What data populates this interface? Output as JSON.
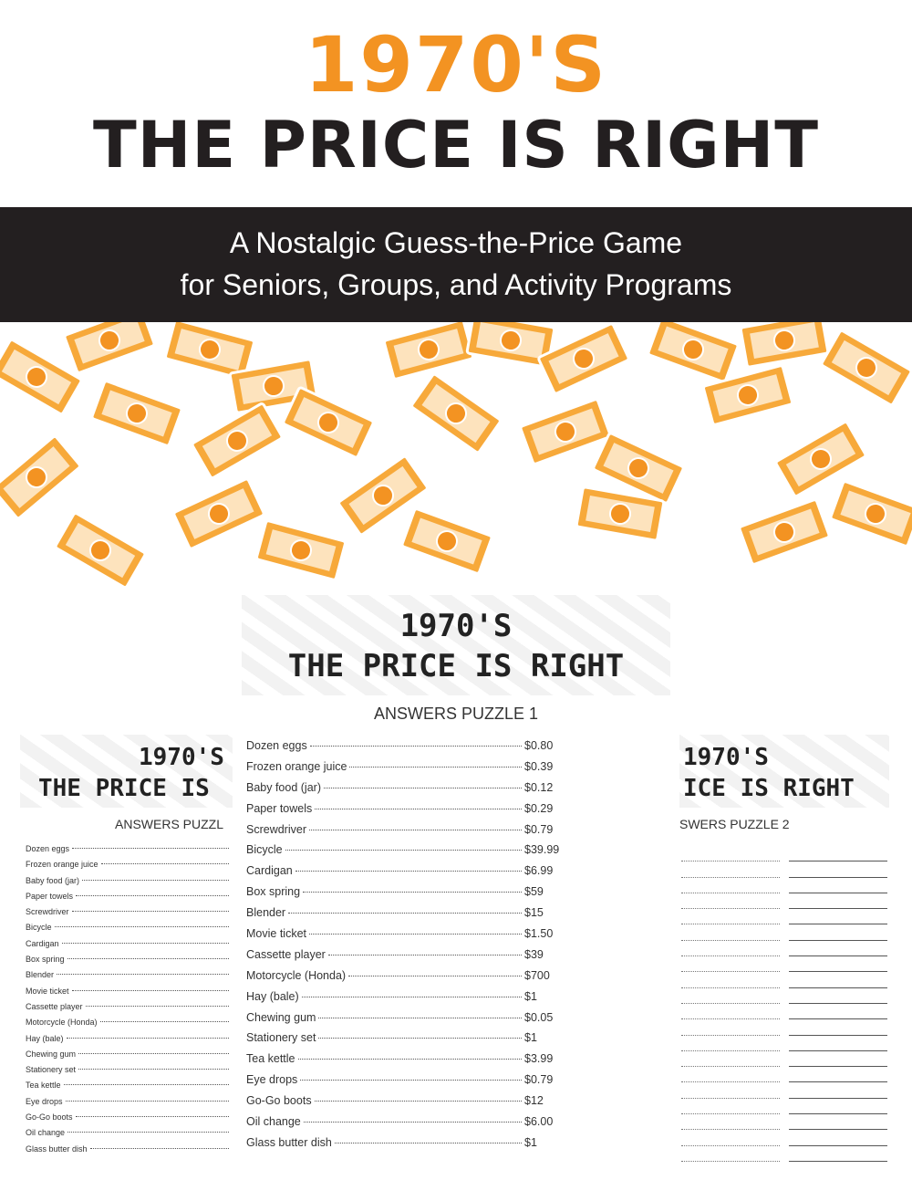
{
  "header": {
    "year": "1970'S",
    "title": "THE PRICE IS RIGHT"
  },
  "banner": {
    "line1": "A Nostalgic Guess-the-Price Game",
    "line2": "for Seniors, Groups, and Activity Programs"
  },
  "center_page": {
    "year": "1970'S",
    "title": "THE PRICE IS RIGHT",
    "subtitle": "ANSWERS PUZZLE 1",
    "items": [
      {
        "name": "Dozen eggs",
        "price": "$0.80"
      },
      {
        "name": "Frozen orange juice",
        "price": "$0.39"
      },
      {
        "name": "Baby food (jar)",
        "price": "$0.12"
      },
      {
        "name": "Paper towels",
        "price": "$0.29"
      },
      {
        "name": "Screwdriver",
        "price": "$0.79"
      },
      {
        "name": "Bicycle",
        "price": "$39.99"
      },
      {
        "name": "Cardigan",
        "price": "$6.99"
      },
      {
        "name": "Box spring",
        "price": "$59"
      },
      {
        "name": "Blender",
        "price": "$15"
      },
      {
        "name": "Movie ticket",
        "price": "$1.50"
      },
      {
        "name": "Cassette player",
        "price": "$39"
      },
      {
        "name": "Motorcycle (Honda)",
        "price": "$700"
      },
      {
        "name": "Hay (bale)",
        "price": "$1"
      },
      {
        "name": "Chewing gum",
        "price": "$0.05"
      },
      {
        "name": "Stationery set",
        "price": "$1"
      },
      {
        "name": "Tea kettle",
        "price": "$3.99"
      },
      {
        "name": "Eye drops",
        "price": "$0.79"
      },
      {
        "name": "Go-Go boots",
        "price": "$12"
      },
      {
        "name": "Oil change",
        "price": "$6.00"
      },
      {
        "name": "Glass butter dish",
        "price": "$1"
      }
    ]
  },
  "left_page": {
    "year": "1970'S",
    "title": "THE PRICE IS",
    "subtitle": "ANSWERS PUZZL",
    "items": [
      "Dozen eggs",
      "Frozen orange juice",
      "Baby food (jar)",
      "Paper towels",
      "Screwdriver",
      "Bicycle",
      "Cardigan",
      "Box spring",
      "Blender",
      "Movie ticket",
      "Cassette player",
      "Motorcycle (Honda)",
      "Hay (bale)",
      "Chewing gum",
      "Stationery set",
      "Tea kettle",
      "Eye drops",
      "Go-Go boots",
      "Oil change",
      "Glass butter dish"
    ]
  },
  "right_page": {
    "year": "1970'S",
    "title": "ICE IS RIGHT",
    "subtitle": "SWERS PUZZLE 2"
  }
}
